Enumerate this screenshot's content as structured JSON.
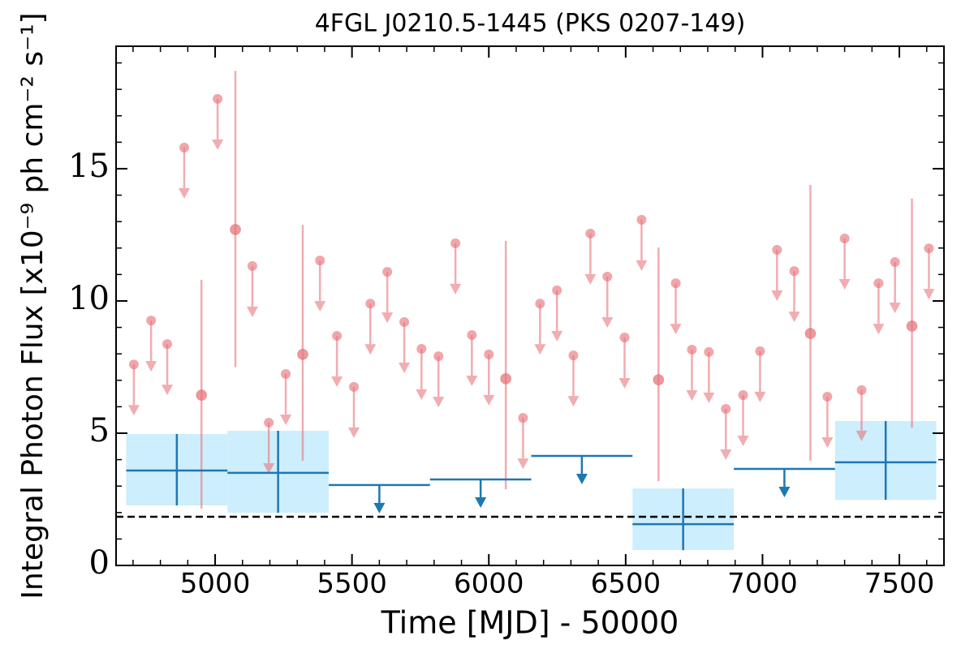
{
  "chart_data": {
    "type": "lightcurve",
    "title": "4FGL J0210.5-1445 (PKS 0207-149)",
    "xlabel": "Time [MJD] - 50000",
    "ylabel": "Integral Photon Flux [x10⁻⁹ ph cm⁻² s⁻¹]",
    "xlim": [
      4638,
      7663
    ],
    "ylim": [
      0,
      19.63
    ],
    "xticks": [
      5000,
      5500,
      6000,
      6500,
      7000,
      7500
    ],
    "yticks": [
      0,
      5,
      10,
      15
    ],
    "xminor": [
      4700,
      4800,
      4900,
      5100,
      5200,
      5300,
      5400,
      5600,
      5700,
      5800,
      5900,
      6100,
      6200,
      6300,
      6400,
      6600,
      6700,
      6800,
      6900,
      7100,
      7200,
      7300,
      7400,
      7600
    ],
    "yminor": [
      1,
      2,
      3,
      4,
      6,
      7,
      8,
      9,
      11,
      12,
      13,
      14,
      16,
      17,
      18,
      19
    ],
    "fine": {
      "color": "#e8767c",
      "x": [
        4703,
        4766,
        4825,
        4887,
        4950,
        5009,
        5074,
        5136,
        5196,
        5258,
        5320,
        5383,
        5445,
        5507,
        5567,
        5629,
        5691,
        5754,
        5816,
        5878,
        5938,
        6000,
        6062,
        6125,
        6187,
        6249,
        6309,
        6371,
        6433,
        6496,
        6558,
        6620,
        6683,
        6742,
        6804,
        6866,
        6929,
        6991,
        7053,
        7116,
        7175,
        7237,
        7300,
        7362,
        7424,
        7484,
        7546,
        7608
      ],
      "values": [
        7.6,
        9.26,
        8.37,
        15.8,
        6.44,
        17.64,
        12.7,
        11.32,
        5.4,
        7.24,
        7.98,
        11.53,
        8.68,
        6.75,
        9.9,
        11.1,
        9.2,
        8.19,
        7.91,
        12.18,
        8.71,
        7.98,
        7.06,
        5.58,
        9.9,
        10.4,
        7.94,
        12.55,
        10.92,
        8.62,
        13.07,
        7.02,
        10.67,
        8.16,
        8.07,
        5.92,
        6.44,
        8.1,
        11.93,
        11.13,
        8.77,
        6.38,
        12.36,
        6.63,
        10.67,
        11.47,
        9.05,
        11.99
      ],
      "err_low": [
        null,
        null,
        null,
        null,
        2.15,
        null,
        7.5,
        null,
        null,
        null,
        3.96,
        null,
        null,
        null,
        null,
        null,
        null,
        null,
        null,
        null,
        null,
        null,
        2.88,
        null,
        null,
        null,
        null,
        null,
        null,
        null,
        null,
        3.19,
        null,
        null,
        null,
        null,
        null,
        null,
        null,
        null,
        3.96,
        null,
        null,
        null,
        null,
        null,
        5.21,
        null
      ],
      "err_high": [
        null,
        null,
        null,
        null,
        10.8,
        null,
        18.7,
        null,
        null,
        null,
        12.88,
        null,
        null,
        null,
        null,
        null,
        null,
        null,
        null,
        null,
        null,
        null,
        12.27,
        null,
        null,
        null,
        null,
        null,
        null,
        null,
        null,
        12.02,
        null,
        null,
        null,
        null,
        null,
        null,
        null,
        null,
        14.39,
        null,
        null,
        null,
        null,
        null,
        13.87,
        null
      ]
    },
    "coarse": {
      "color": "#1f77b4",
      "box_color": "#cdeefc",
      "bins": [
        4675,
        5045,
        5415,
        5785,
        6155,
        6525,
        6895,
        7265,
        7635
      ],
      "values": [
        3.59,
        3.5,
        3.04,
        3.25,
        4.14,
        1.56,
        3.65,
        3.9
      ],
      "err_low": [
        2.27,
        1.99,
        null,
        null,
        null,
        0.58,
        null,
        2.48
      ],
      "err_high": [
        4.97,
        5.09,
        null,
        null,
        null,
        2.91,
        null,
        5.46
      ]
    },
    "reference_level": 1.84
  }
}
